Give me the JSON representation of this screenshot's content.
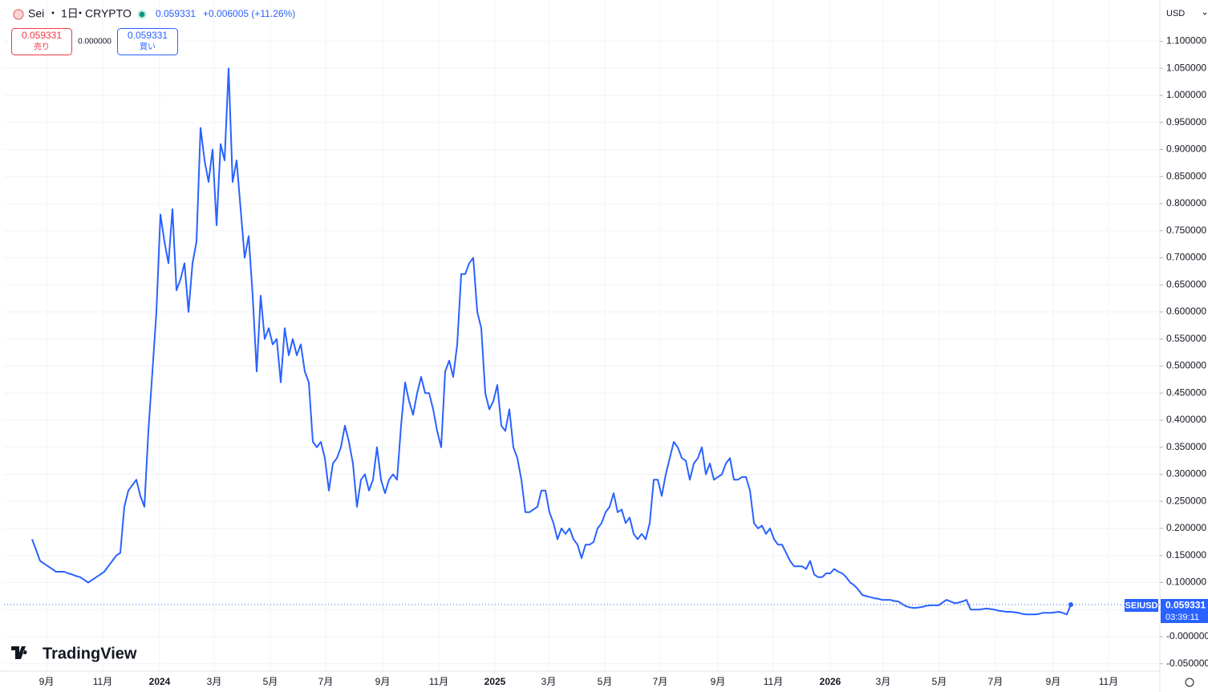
{
  "header": {
    "symbol": "Sei",
    "interval": "1日",
    "exchange": "CRYPTO",
    "price": 0.059331,
    "change": "+0.006005 (+11.26%)",
    "sell_price": 0.059331,
    "sell_label": "売り",
    "spread": "0.000000",
    "buy_price": 0.059331,
    "buy_label": "買い",
    "currency": "USD"
  },
  "price_label": {
    "symbol": "SEIUSD",
    "price": 0.059331,
    "countdown": "03:39:11"
  },
  "logo": "TradingView",
  "chart_data": {
    "type": "line",
    "color": "#2962ff",
    "grid": true,
    "xlim": [
      -7,
      281.2
    ],
    "xticks": [
      {
        "value": 3.6,
        "label": "9月"
      },
      {
        "value": 17.6,
        "label": "11月"
      },
      {
        "value": 31.8,
        "label": "2024"
      },
      {
        "value": 45.4,
        "label": "3月"
      },
      {
        "value": 59.4,
        "label": "5月"
      },
      {
        "value": 73.2,
        "label": "7月"
      },
      {
        "value": 87.4,
        "label": "9月"
      },
      {
        "value": 101.4,
        "label": "11月"
      },
      {
        "value": 115.4,
        "label": "2025"
      },
      {
        "value": 128.8,
        "label": "3月"
      },
      {
        "value": 142.8,
        "label": "5月"
      },
      {
        "value": 156.6,
        "label": "7月"
      },
      {
        "value": 171,
        "label": "9月"
      },
      {
        "value": 184.8,
        "label": "11月"
      },
      {
        "value": 199,
        "label": "2026"
      },
      {
        "value": 212.2,
        "label": "3月"
      },
      {
        "value": 226.2,
        "label": "5月"
      },
      {
        "value": 240.2,
        "label": "7月"
      },
      {
        "value": 254.6,
        "label": "9月"
      },
      {
        "value": 268.4,
        "label": "11月"
      }
    ],
    "ylim": [
      -0.0637,
      1.1763
    ],
    "yticks": [
      {
        "value": 1.1,
        "label": "1.100000"
      },
      {
        "value": 1.05,
        "label": "1.050000"
      },
      {
        "value": 1.0,
        "label": "1.000000"
      },
      {
        "value": 0.95,
        "label": "0.950000"
      },
      {
        "value": 0.9,
        "label": "0.900000"
      },
      {
        "value": 0.85,
        "label": "0.850000"
      },
      {
        "value": 0.8,
        "label": "0.800000"
      },
      {
        "value": 0.75,
        "label": "0.750000"
      },
      {
        "value": 0.7,
        "label": "0.700000"
      },
      {
        "value": 0.65,
        "label": "0.650000"
      },
      {
        "value": 0.6,
        "label": "0.600000"
      },
      {
        "value": 0.55,
        "label": "0.550000"
      },
      {
        "value": 0.5,
        "label": "0.500000"
      },
      {
        "value": 0.45,
        "label": "0.450000"
      },
      {
        "value": 0.4,
        "label": "0.400000"
      },
      {
        "value": 0.35,
        "label": "0.350000"
      },
      {
        "value": 0.3,
        "label": "0.300000"
      },
      {
        "value": 0.25,
        "label": "0.250000"
      },
      {
        "value": 0.2,
        "label": "0.200000"
      },
      {
        "value": 0.15,
        "label": "0.150000"
      },
      {
        "value": 0.1,
        "label": "0.100000"
      },
      {
        "value": 0.05,
        "label": "0.050000"
      },
      {
        "value": 0,
        "label": "-0.000000"
      },
      {
        "value": -0.05,
        "label": "-0.050000"
      }
    ],
    "values": [
      0.18,
      0.16,
      0.14,
      0.135,
      0.13,
      0.125,
      0.12,
      0.12,
      0.12,
      0.117,
      0.115,
      0.112,
      0.11,
      0.105,
      0.1,
      0.105,
      0.11,
      0.115,
      0.12,
      0.13,
      0.14,
      0.15,
      0.155,
      0.24,
      0.27,
      0.28,
      0.29,
      0.26,
      0.24,
      0.38,
      0.49,
      0.6,
      0.78,
      0.73,
      0.69,
      0.79,
      0.64,
      0.66,
      0.69,
      0.6,
      0.69,
      0.73,
      0.94,
      0.88,
      0.84,
      0.9,
      0.76,
      0.91,
      0.88,
      1.05,
      0.84,
      0.88,
      0.79,
      0.7,
      0.74,
      0.63,
      0.49,
      0.63,
      0.55,
      0.57,
      0.54,
      0.55,
      0.47,
      0.57,
      0.52,
      0.55,
      0.52,
      0.54,
      0.49,
      0.47,
      0.36,
      0.35,
      0.36,
      0.33,
      0.27,
      0.32,
      0.33,
      0.35,
      0.39,
      0.36,
      0.32,
      0.24,
      0.29,
      0.3,
      0.27,
      0.29,
      0.35,
      0.29,
      0.265,
      0.29,
      0.3,
      0.29,
      0.39,
      0.47,
      0.435,
      0.41,
      0.45,
      0.48,
      0.45,
      0.45,
      0.42,
      0.38,
      0.35,
      0.49,
      0.51,
      0.48,
      0.54,
      0.67,
      0.67,
      0.69,
      0.7,
      0.6,
      0.57,
      0.45,
      0.42,
      0.435,
      0.465,
      0.39,
      0.38,
      0.42,
      0.35,
      0.33,
      0.29,
      0.23,
      0.23,
      0.235,
      0.24,
      0.27,
      0.27,
      0.23,
      0.21,
      0.18,
      0.2,
      0.19,
      0.2,
      0.18,
      0.17,
      0.145,
      0.17,
      0.17,
      0.175,
      0.2,
      0.21,
      0.23,
      0.24,
      0.265,
      0.23,
      0.235,
      0.21,
      0.22,
      0.19,
      0.18,
      0.19,
      0.18,
      0.21,
      0.29,
      0.29,
      0.26,
      0.3,
      0.33,
      0.36,
      0.35,
      0.33,
      0.325,
      0.29,
      0.32,
      0.33,
      0.35,
      0.3,
      0.32,
      0.29,
      0.295,
      0.3,
      0.32,
      0.33,
      0.29,
      0.29,
      0.295,
      0.295,
      0.27,
      0.21,
      0.2,
      0.205,
      0.19,
      0.2,
      0.18,
      0.17,
      0.17,
      0.155,
      0.14,
      0.13,
      0.13,
      0.13,
      0.125,
      0.14,
      0.115,
      0.11,
      0.11,
      0.117,
      0.117,
      0.125,
      0.12,
      0.117,
      0.11,
      0.1,
      0.095,
      0.087,
      0.077,
      0.075,
      0.073,
      0.071,
      0.07,
      0.068,
      0.068,
      0.068,
      0.066,
      0.065,
      0.06,
      0.056,
      0.054,
      0.053,
      0.054,
      0.055,
      0.057,
      0.058,
      0.058,
      0.058,
      0.063,
      0.068,
      0.065,
      0.062,
      0.063,
      0.065,
      0.068,
      0.05,
      0.05,
      0.05,
      0.051,
      0.052,
      0.051,
      0.05,
      0.048,
      0.047,
      0.046,
      0.046,
      0.045,
      0.044,
      0.042,
      0.041,
      0.041,
      0.041,
      0.042,
      0.044,
      0.044,
      0.044,
      0.045,
      0.046,
      0.044,
      0.041,
      0.059331
    ]
  }
}
